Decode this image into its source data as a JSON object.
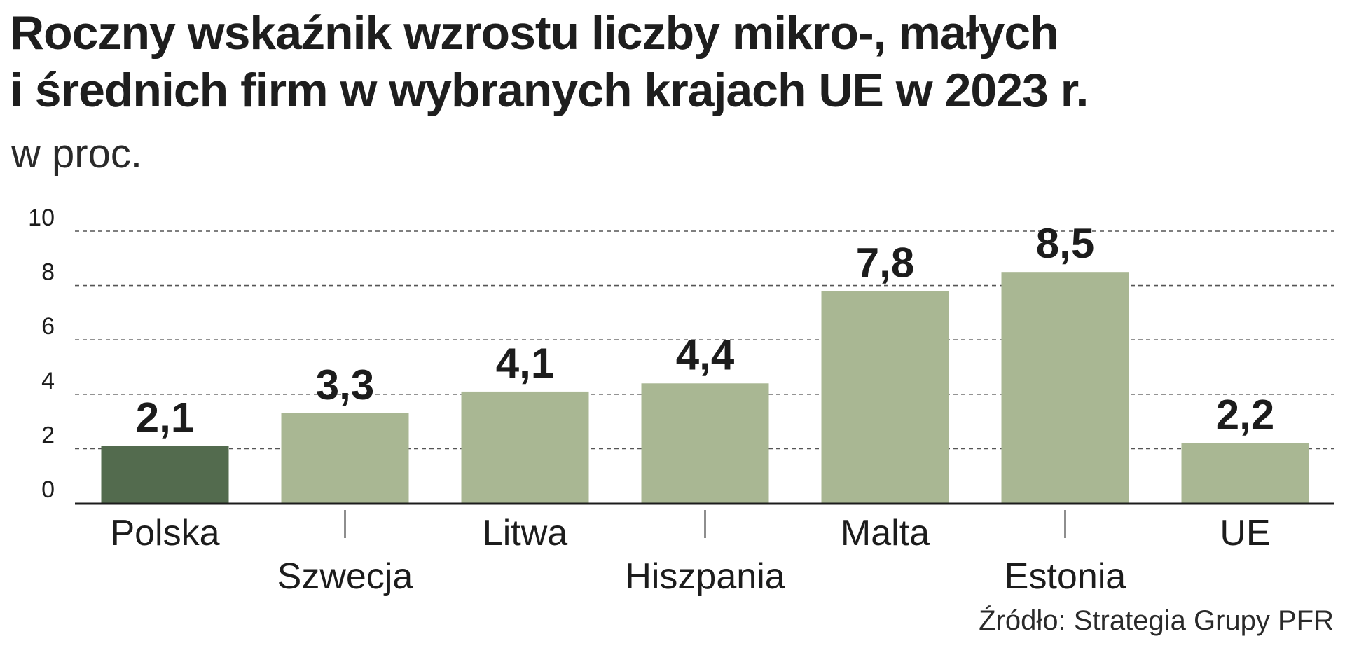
{
  "header": {
    "title_line1": "Roczny wskaźnik wzrostu liczby mikro-, małych",
    "title_line2": "i średnich firm w wybranych krajach UE w 2023 r.",
    "unit": "w proc."
  },
  "footer": {
    "source": "Źródło: Strategia Grupy PFR"
  },
  "colors": {
    "highlight_bar": "#536b4e",
    "bar": "#a9b793",
    "grid": "#555555",
    "axis": "#1c1c1c",
    "text": "#1c1c1c"
  },
  "chart_data": {
    "type": "bar",
    "categories": [
      "Polska",
      "Szwecja",
      "Litwa",
      "Hiszpania",
      "Malta",
      "Estonia",
      "UE"
    ],
    "values": [
      2.1,
      3.3,
      4.1,
      4.4,
      7.8,
      8.5,
      2.2
    ],
    "value_labels": [
      "2,1",
      "3,3",
      "4,1",
      "4,4",
      "7,8",
      "8,5",
      "2,2"
    ],
    "highlight_index": 0,
    "ylim": [
      0,
      10
    ],
    "yticks": [
      0,
      2,
      4,
      6,
      8,
      10
    ],
    "ytick_labels": [
      "0",
      "2",
      "4",
      "6",
      "8",
      "10"
    ],
    "grid": "dashed horizontal",
    "legend": "none",
    "labels_alternate": true
  }
}
